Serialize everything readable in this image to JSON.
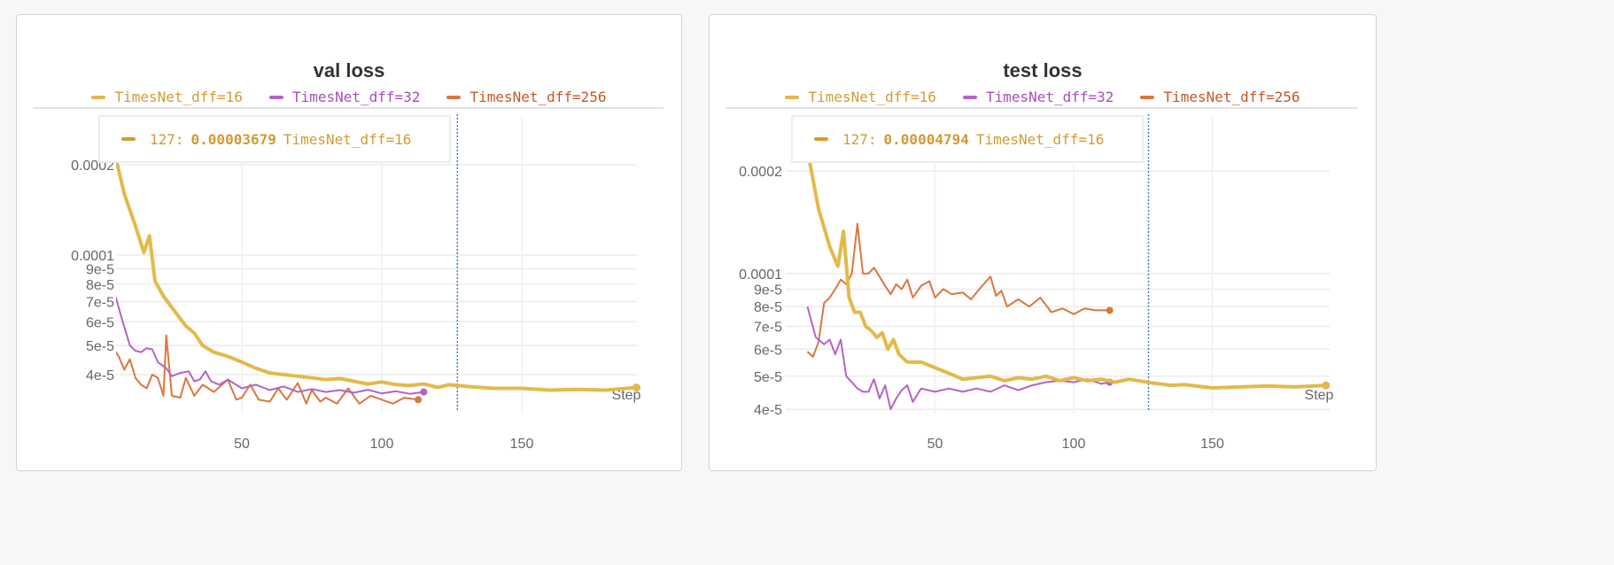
{
  "colors": {
    "dff16": "#e3b94b",
    "dff32": "#b563c6",
    "dff256": "#d9773f",
    "cursor": "#3b7fd6"
  },
  "chart_data": [
    {
      "type": "line",
      "title": "val loss",
      "xlabel": "Step",
      "yscale": "log",
      "ylim": [
        3e-05,
        0.00023
      ],
      "xlim": [
        0,
        192
      ],
      "yticks": [
        {
          "v": 0.0002,
          "label": "0.0002"
        },
        {
          "v": 0.0001,
          "label": "0.0001"
        },
        {
          "v": 9e-05,
          "label": "9e-5"
        },
        {
          "v": 8e-05,
          "label": "8e-5"
        },
        {
          "v": 7e-05,
          "label": "7e-5"
        },
        {
          "v": 6e-05,
          "label": "6e-5"
        },
        {
          "v": 5e-05,
          "label": "5e-5"
        },
        {
          "v": 4e-05,
          "label": "4e-5"
        }
      ],
      "xticks": [
        {
          "v": 50,
          "label": "50"
        },
        {
          "v": 100,
          "label": "100"
        },
        {
          "v": 150,
          "label": "150"
        }
      ],
      "cursor_step": 127,
      "tooltip": {
        "step": "127:",
        "value": "0.00003679",
        "series": "TimesNet_dff=16"
      },
      "series": [
        {
          "name": "TimesNet_dff=16",
          "color": "#e3b94b",
          "width": 4,
          "x": [
            4,
            8,
            12,
            15,
            17,
            19,
            22,
            26,
            30,
            33,
            36,
            40,
            45,
            50,
            55,
            60,
            65,
            70,
            75,
            80,
            85,
            90,
            95,
            100,
            105,
            110,
            115,
            120,
            124,
            127,
            132,
            140,
            150,
            160,
            170,
            180,
            191
          ],
          "y": [
            0.00023,
            0.00016,
            0.000125,
            0.000102,
            0.000116,
            8.2e-05,
            7.3e-05,
            6.5e-05,
            5.8e-05,
            5.5e-05,
            5e-05,
            4.75e-05,
            4.6e-05,
            4.4e-05,
            4.2e-05,
            4.05e-05,
            4e-05,
            3.95e-05,
            3.9e-05,
            3.85e-05,
            3.88e-05,
            3.8e-05,
            3.72e-05,
            3.78e-05,
            3.7e-05,
            3.68e-05,
            3.72e-05,
            3.62e-05,
            3.7e-05,
            3.679e-05,
            3.64e-05,
            3.6e-05,
            3.6e-05,
            3.55e-05,
            3.57e-05,
            3.55e-05,
            3.62e-05
          ]
        },
        {
          "name": "TimesNet_dff=32",
          "color": "#b563c6",
          "width": 2,
          "x": [
            4,
            7,
            10,
            12,
            14,
            16,
            18,
            20,
            23,
            25,
            28,
            31,
            33,
            35,
            37,
            39,
            42,
            45,
            50,
            55,
            60,
            65,
            70,
            75,
            80,
            85,
            90,
            95,
            100,
            105,
            110,
            115
          ],
          "y": [
            7.8e-05,
            6.2e-05,
            5e-05,
            4.8e-05,
            4.75e-05,
            4.9e-05,
            4.85e-05,
            4.4e-05,
            4.2e-05,
            3.95e-05,
            4.05e-05,
            4.1e-05,
            3.8e-05,
            3.85e-05,
            4.1e-05,
            3.8e-05,
            3.7e-05,
            3.85e-05,
            3.6e-05,
            3.7e-05,
            3.55e-05,
            3.65e-05,
            3.5e-05,
            3.58e-05,
            3.5e-05,
            3.55e-05,
            3.48e-05,
            3.56e-05,
            3.46e-05,
            3.52e-05,
            3.45e-05,
            3.5e-05
          ]
        },
        {
          "name": "TimesNet_dff=256",
          "color": "#d9773f",
          "width": 2,
          "x": [
            4,
            6,
            8,
            10,
            12,
            14,
            16,
            18,
            20,
            22,
            23,
            25,
            28,
            30,
            33,
            36,
            40,
            45,
            48,
            50,
            53,
            56,
            60,
            63,
            66,
            70,
            73,
            75,
            78,
            80,
            84,
            88,
            92,
            96,
            100,
            104,
            108,
            113
          ],
          "y": [
            4.9e-05,
            4.6e-05,
            4.15e-05,
            4.5e-05,
            3.9e-05,
            3.7e-05,
            3.6e-05,
            4e-05,
            3.9e-05,
            3.4e-05,
            5.4e-05,
            3.4e-05,
            3.35e-05,
            3.9e-05,
            3.4e-05,
            3.7e-05,
            3.5e-05,
            3.85e-05,
            3.3e-05,
            3.35e-05,
            3.7e-05,
            3.3e-05,
            3.25e-05,
            3.6e-05,
            3.3e-05,
            3.75e-05,
            3.2e-05,
            3.55e-05,
            3.25e-05,
            3.35e-05,
            3.2e-05,
            3.6e-05,
            3.2e-05,
            3.4e-05,
            3.3e-05,
            3.2e-05,
            3.35e-05,
            3.3e-05
          ]
        }
      ]
    },
    {
      "type": "line",
      "title": "test loss",
      "xlabel": "Step",
      "yscale": "log",
      "ylim": [
        3.9e-05,
        0.00023
      ],
      "xlim": [
        0,
        192
      ],
      "yticks": [
        {
          "v": 0.0002,
          "label": "0.0002"
        },
        {
          "v": 0.0001,
          "label": "0.0001"
        },
        {
          "v": 9e-05,
          "label": "9e-5"
        },
        {
          "v": 8e-05,
          "label": "8e-5"
        },
        {
          "v": 7e-05,
          "label": "7e-5"
        },
        {
          "v": 6e-05,
          "label": "6e-5"
        },
        {
          "v": 5e-05,
          "label": "5e-5"
        },
        {
          "v": 4e-05,
          "label": "4e-5"
        }
      ],
      "xticks": [
        {
          "v": 50,
          "label": "50"
        },
        {
          "v": 100,
          "label": "100"
        },
        {
          "v": 150,
          "label": "150"
        }
      ],
      "cursor_step": 127,
      "tooltip": {
        "step": "127:",
        "value": "0.00004794",
        "series": "TimesNet_dff=16"
      },
      "series": [
        {
          "name": "TimesNet_dff=16",
          "color": "#e3b94b",
          "width": 4,
          "x": [
            4,
            8,
            12,
            15,
            17,
            19,
            21,
            23,
            25,
            27,
            29,
            31,
            33,
            35,
            37,
            40,
            45,
            50,
            55,
            60,
            65,
            70,
            75,
            80,
            85,
            90,
            95,
            100,
            105,
            110,
            115,
            120,
            127,
            135,
            140,
            150,
            160,
            170,
            180,
            191
          ],
          "y": [
            0.00023,
            0.000155,
            0.00012,
            0.000105,
            0.000133,
            8.5e-05,
            7.7e-05,
            7.7e-05,
            7e-05,
            6.8e-05,
            6.5e-05,
            6.7e-05,
            6e-05,
            6.4e-05,
            5.8e-05,
            5.5e-05,
            5.5e-05,
            5.3e-05,
            5.1e-05,
            4.9e-05,
            4.95e-05,
            5e-05,
            4.85e-05,
            4.95e-05,
            4.9e-05,
            5e-05,
            4.85e-05,
            4.95e-05,
            4.85e-05,
            4.9e-05,
            4.8e-05,
            4.9e-05,
            4.794e-05,
            4.7e-05,
            4.72e-05,
            4.62e-05,
            4.65e-05,
            4.68e-05,
            4.65e-05,
            4.7e-05
          ]
        },
        {
          "name": "TimesNet_dff=32",
          "color": "#b563c6",
          "width": 2,
          "x": [
            4,
            7,
            10,
            12,
            14,
            16,
            18,
            20,
            22,
            24,
            26,
            28,
            30,
            32,
            34,
            36,
            38,
            40,
            42,
            45,
            50,
            55,
            60,
            65,
            70,
            75,
            80,
            85,
            90,
            95,
            100,
            105,
            110,
            113
          ],
          "y": [
            8e-05,
            6.5e-05,
            6.2e-05,
            6.4e-05,
            5.8e-05,
            6.4e-05,
            5e-05,
            4.8e-05,
            4.6e-05,
            4.5e-05,
            4.5e-05,
            4.9e-05,
            4.3e-05,
            4.7e-05,
            4e-05,
            4.3e-05,
            4.55e-05,
            4.7e-05,
            4.2e-05,
            4.6e-05,
            4.5e-05,
            4.6e-05,
            4.5e-05,
            4.6e-05,
            4.5e-05,
            4.7e-05,
            4.55e-05,
            4.7e-05,
            4.8e-05,
            4.85e-05,
            4.8e-05,
            4.9e-05,
            4.75e-05,
            4.8e-05
          ]
        },
        {
          "name": "TimesNet_dff=256",
          "color": "#d9773f",
          "width": 2,
          "x": [
            4,
            6,
            8,
            10,
            12,
            14,
            16,
            18,
            20,
            22,
            24,
            26,
            28,
            30,
            32,
            34,
            36,
            38,
            40,
            42,
            45,
            48,
            50,
            53,
            56,
            60,
            63,
            66,
            70,
            72,
            74,
            76,
            80,
            84,
            88,
            92,
            96,
            100,
            104,
            108,
            113
          ],
          "y": [
            5.9e-05,
            5.7e-05,
            6.3e-05,
            8.2e-05,
            8.5e-05,
            9e-05,
            9.6e-05,
            9.3e-05,
            0.0001,
            0.00014,
            0.0001,
            0.0001,
            0.000104,
            9.8e-05,
            9.2e-05,
            8.7e-05,
            9.3e-05,
            9e-05,
            9.6e-05,
            8.5e-05,
            9.2e-05,
            9.5e-05,
            8.5e-05,
            9e-05,
            8.7e-05,
            8.8e-05,
            8.4e-05,
            9e-05,
            9.8e-05,
            8.6e-05,
            8.9e-05,
            8e-05,
            8.4e-05,
            8e-05,
            8.5e-05,
            7.7e-05,
            7.9e-05,
            7.6e-05,
            7.9e-05,
            7.8e-05,
            7.8e-05
          ]
        }
      ]
    }
  ]
}
